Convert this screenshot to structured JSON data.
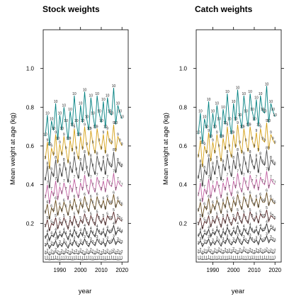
{
  "chart_data": [
    {
      "type": "line",
      "title": "Stock weights",
      "xlabel": "year",
      "ylabel": "Mean weight at age (kg)",
      "xlim": [
        1982,
        2023
      ],
      "ylim": [
        0,
        1.2
      ],
      "xticks": [
        1990,
        2000,
        2010,
        2020
      ],
      "yticks": [
        0.2,
        0.4,
        0.6,
        0.8,
        1.0
      ],
      "tick_labels_x": [
        "1990",
        "2000",
        "2010",
        "2020"
      ],
      "tick_labels_y": [
        "0.2",
        "0.4",
        "0.6",
        "0.8",
        "1.0"
      ],
      "x_start": 1983,
      "x_step": 1,
      "series": [
        {
          "name": "1",
          "color": "#555555",
          "values": [
            0.012,
            0.014,
            0.011,
            0.013,
            0.012,
            0.015,
            0.012,
            0.011,
            0.013,
            0.012,
            0.014,
            0.012,
            0.013,
            0.011,
            0.012,
            0.014,
            0.013,
            0.012,
            0.011,
            0.013,
            0.012,
            0.014,
            0.012,
            0.011,
            0.013,
            0.012,
            0.014,
            0.013,
            0.012,
            0.011,
            0.013,
            0.012,
            0.014,
            0.012,
            0.013,
            0.011,
            0.012,
            0.013
          ]
        },
        {
          "name": "2",
          "color": "#555555",
          "values": [
            0.04,
            0.05,
            0.035,
            0.045,
            0.04,
            0.055,
            0.042,
            0.036,
            0.048,
            0.04,
            0.052,
            0.044,
            0.038,
            0.05,
            0.042,
            0.047,
            0.04,
            0.053,
            0.043,
            0.037,
            0.049,
            0.041,
            0.055,
            0.045,
            0.04,
            0.05,
            0.043,
            0.038,
            0.048,
            0.042,
            0.05,
            0.04,
            0.045,
            0.052,
            0.041,
            0.047,
            0.04,
            0.044
          ]
        },
        {
          "name": "3",
          "color": "#333333",
          "values": [
            0.08,
            0.1,
            0.07,
            0.09,
            0.085,
            0.11,
            0.075,
            0.095,
            0.08,
            0.105,
            0.09,
            0.072,
            0.1,
            0.085,
            0.115,
            0.09,
            0.078,
            0.1,
            0.088,
            0.12,
            0.092,
            0.08,
            0.11,
            0.095,
            0.085,
            0.12,
            0.1,
            0.09,
            0.105,
            0.08,
            0.115,
            0.095,
            0.1,
            0.125,
            0.09,
            0.11,
            0.1,
            0.095
          ]
        },
        {
          "name": "4",
          "color": "#333333",
          "values": [
            0.12,
            0.15,
            0.11,
            0.14,
            0.13,
            0.16,
            0.12,
            0.145,
            0.13,
            0.16,
            0.14,
            0.115,
            0.15,
            0.13,
            0.17,
            0.14,
            0.125,
            0.155,
            0.135,
            0.18,
            0.14,
            0.125,
            0.165,
            0.145,
            0.13,
            0.175,
            0.15,
            0.14,
            0.16,
            0.13,
            0.17,
            0.15,
            0.155,
            0.19,
            0.14,
            0.165,
            0.16,
            0.15
          ]
        },
        {
          "name": "5",
          "color": "#5a2a2a",
          "values": [
            0.18,
            0.22,
            0.16,
            0.2,
            0.19,
            0.23,
            0.17,
            0.21,
            0.19,
            0.23,
            0.2,
            0.17,
            0.22,
            0.19,
            0.24,
            0.2,
            0.18,
            0.22,
            0.2,
            0.25,
            0.21,
            0.19,
            0.24,
            0.21,
            0.19,
            0.25,
            0.22,
            0.2,
            0.23,
            0.19,
            0.24,
            0.22,
            0.22,
            0.26,
            0.2,
            0.23,
            0.22,
            0.21
          ]
        },
        {
          "name": "6",
          "color": "#6b4e1e",
          "values": [
            0.25,
            0.3,
            0.22,
            0.28,
            0.26,
            0.32,
            0.24,
            0.29,
            0.26,
            0.31,
            0.28,
            0.24,
            0.3,
            0.27,
            0.33,
            0.28,
            0.25,
            0.31,
            0.28,
            0.34,
            0.29,
            0.26,
            0.33,
            0.3,
            0.27,
            0.34,
            0.3,
            0.28,
            0.32,
            0.27,
            0.33,
            0.3,
            0.3,
            0.35,
            0.28,
            0.32,
            0.3,
            0.29
          ]
        },
        {
          "name": "7",
          "color": "#c060a0",
          "values": [
            0.33,
            0.4,
            0.3,
            0.37,
            0.34,
            0.42,
            0.32,
            0.39,
            0.35,
            0.41,
            0.37,
            0.32,
            0.4,
            0.36,
            0.43,
            0.37,
            0.33,
            0.41,
            0.37,
            0.45,
            0.38,
            0.35,
            0.43,
            0.39,
            0.36,
            0.44,
            0.4,
            0.37,
            0.42,
            0.36,
            0.43,
            0.4,
            0.39,
            0.46,
            0.37,
            0.42,
            0.4,
            0.39
          ]
        },
        {
          "name": "8",
          "color": "#555555",
          "values": [
            0.42,
            0.5,
            0.38,
            0.47,
            0.44,
            0.53,
            0.41,
            0.49,
            0.44,
            0.52,
            0.47,
            0.41,
            0.5,
            0.46,
            0.55,
            0.47,
            0.43,
            0.52,
            0.47,
            0.56,
            0.48,
            0.44,
            0.54,
            0.49,
            0.45,
            0.55,
            0.5,
            0.47,
            0.53,
            0.45,
            0.54,
            0.5,
            0.49,
            0.57,
            0.46,
            0.52,
            0.5,
            0.49
          ]
        },
        {
          "name": "9",
          "color": "#d4a017",
          "values": [
            0.53,
            0.62,
            0.48,
            0.59,
            0.55,
            0.66,
            0.51,
            0.61,
            0.55,
            0.65,
            0.58,
            0.51,
            0.63,
            0.57,
            0.69,
            0.58,
            0.53,
            0.65,
            0.58,
            0.7,
            0.6,
            0.55,
            0.68,
            0.61,
            0.56,
            0.69,
            0.62,
            0.58,
            0.66,
            0.56,
            0.68,
            0.62,
            0.61,
            0.71,
            0.57,
            0.65,
            0.62,
            0.6
          ]
        },
        {
          "name": "10",
          "color": "#008080",
          "values": [
            0.65,
            0.76,
            0.6,
            0.73,
            0.68,
            0.82,
            0.63,
            0.76,
            0.68,
            0.8,
            0.72,
            0.63,
            0.78,
            0.7,
            0.86,
            0.72,
            0.65,
            0.81,
            0.72,
            0.88,
            0.74,
            0.68,
            0.85,
            0.76,
            0.69,
            0.86,
            0.77,
            0.72,
            0.83,
            0.69,
            0.85,
            0.77,
            0.76,
            0.9,
            0.71,
            0.81,
            0.77,
            0.74
          ]
        }
      ]
    },
    {
      "type": "line",
      "title": "Catch weights",
      "xlabel": "year",
      "ylabel": "Mean weight at age (kg)",
      "xlim": [
        1982,
        2023
      ],
      "ylim": [
        0,
        1.2
      ],
      "xticks": [
        1990,
        2000,
        2010,
        2020
      ],
      "yticks": [
        0.2,
        0.4,
        0.6,
        0.8,
        1.0
      ],
      "tick_labels_x": [
        "1990",
        "2000",
        "2010",
        "2020"
      ],
      "tick_labels_y": [
        "0.2",
        "0.4",
        "0.6",
        "0.8",
        "1.0"
      ],
      "x_start": 1983,
      "x_step": 1,
      "series": [
        {
          "name": "1",
          "color": "#555555",
          "values": [
            0.013,
            0.015,
            0.012,
            0.014,
            0.013,
            0.016,
            0.013,
            0.012,
            0.014,
            0.013,
            0.015,
            0.013,
            0.014,
            0.012,
            0.013,
            0.015,
            0.014,
            0.013,
            0.012,
            0.014,
            0.013,
            0.015,
            0.013,
            0.012,
            0.014,
            0.013,
            0.015,
            0.014,
            0.013,
            0.012,
            0.014,
            0.013,
            0.015,
            0.013,
            0.014,
            0.012,
            0.013,
            0.014
          ]
        },
        {
          "name": "2",
          "color": "#555555",
          "values": [
            0.045,
            0.055,
            0.04,
            0.05,
            0.045,
            0.06,
            0.047,
            0.041,
            0.053,
            0.045,
            0.057,
            0.049,
            0.043,
            0.055,
            0.047,
            0.052,
            0.045,
            0.058,
            0.048,
            0.042,
            0.054,
            0.046,
            0.06,
            0.05,
            0.045,
            0.055,
            0.048,
            0.043,
            0.053,
            0.047,
            0.055,
            0.045,
            0.05,
            0.057,
            0.046,
            0.052,
            0.045,
            0.049
          ]
        },
        {
          "name": "3",
          "color": "#333333",
          "values": [
            0.09,
            0.11,
            0.08,
            0.1,
            0.095,
            0.12,
            0.085,
            0.105,
            0.09,
            0.115,
            0.1,
            0.082,
            0.11,
            0.095,
            0.125,
            0.1,
            0.088,
            0.11,
            0.098,
            0.13,
            0.102,
            0.09,
            0.12,
            0.105,
            0.095,
            0.13,
            0.11,
            0.1,
            0.115,
            0.09,
            0.125,
            0.105,
            0.11,
            0.135,
            0.1,
            0.12,
            0.11,
            0.105
          ]
        },
        {
          "name": "4",
          "color": "#333333",
          "values": [
            0.13,
            0.16,
            0.12,
            0.15,
            0.14,
            0.17,
            0.13,
            0.155,
            0.14,
            0.17,
            0.15,
            0.125,
            0.16,
            0.14,
            0.18,
            0.15,
            0.135,
            0.165,
            0.145,
            0.19,
            0.15,
            0.135,
            0.175,
            0.155,
            0.14,
            0.185,
            0.16,
            0.15,
            0.17,
            0.14,
            0.18,
            0.16,
            0.165,
            0.2,
            0.15,
            0.175,
            0.17,
            0.16
          ]
        },
        {
          "name": "5",
          "color": "#5a2a2a",
          "values": [
            0.19,
            0.23,
            0.17,
            0.21,
            0.2,
            0.24,
            0.18,
            0.22,
            0.2,
            0.24,
            0.21,
            0.18,
            0.23,
            0.2,
            0.25,
            0.21,
            0.19,
            0.23,
            0.21,
            0.26,
            0.22,
            0.2,
            0.25,
            0.22,
            0.2,
            0.26,
            0.23,
            0.21,
            0.24,
            0.2,
            0.25,
            0.23,
            0.23,
            0.27,
            0.21,
            0.24,
            0.23,
            0.22
          ]
        },
        {
          "name": "6",
          "color": "#6b4e1e",
          "values": [
            0.26,
            0.31,
            0.23,
            0.29,
            0.27,
            0.33,
            0.25,
            0.3,
            0.27,
            0.32,
            0.29,
            0.25,
            0.31,
            0.28,
            0.34,
            0.29,
            0.26,
            0.32,
            0.29,
            0.35,
            0.3,
            0.27,
            0.34,
            0.31,
            0.28,
            0.35,
            0.31,
            0.29,
            0.33,
            0.28,
            0.34,
            0.31,
            0.31,
            0.36,
            0.29,
            0.33,
            0.31,
            0.3
          ]
        },
        {
          "name": "7",
          "color": "#c060a0",
          "values": [
            0.34,
            0.41,
            0.31,
            0.38,
            0.35,
            0.43,
            0.33,
            0.4,
            0.36,
            0.42,
            0.38,
            0.33,
            0.41,
            0.37,
            0.44,
            0.38,
            0.34,
            0.42,
            0.38,
            0.46,
            0.39,
            0.36,
            0.44,
            0.4,
            0.37,
            0.45,
            0.41,
            0.38,
            0.43,
            0.37,
            0.44,
            0.41,
            0.4,
            0.47,
            0.38,
            0.43,
            0.41,
            0.4
          ]
        },
        {
          "name": "8",
          "color": "#555555",
          "values": [
            0.43,
            0.51,
            0.39,
            0.48,
            0.45,
            0.54,
            0.42,
            0.5,
            0.45,
            0.53,
            0.48,
            0.42,
            0.51,
            0.47,
            0.56,
            0.48,
            0.44,
            0.53,
            0.48,
            0.57,
            0.49,
            0.45,
            0.55,
            0.5,
            0.46,
            0.56,
            0.51,
            0.48,
            0.54,
            0.46,
            0.55,
            0.51,
            0.5,
            0.58,
            0.47,
            0.53,
            0.51,
            0.5
          ]
        },
        {
          "name": "9",
          "color": "#d4a017",
          "values": [
            0.54,
            0.63,
            0.49,
            0.6,
            0.56,
            0.67,
            0.52,
            0.62,
            0.56,
            0.66,
            0.59,
            0.52,
            0.64,
            0.58,
            0.7,
            0.59,
            0.54,
            0.66,
            0.59,
            0.71,
            0.61,
            0.56,
            0.69,
            0.62,
            0.57,
            0.7,
            0.63,
            0.59,
            0.67,
            0.57,
            0.69,
            0.63,
            0.62,
            0.72,
            0.58,
            0.66,
            0.63,
            0.61
          ]
        },
        {
          "name": "10",
          "color": "#008080",
          "values": [
            0.66,
            0.77,
            0.61,
            0.74,
            0.69,
            0.83,
            0.64,
            0.77,
            0.69,
            0.81,
            0.73,
            0.64,
            0.79,
            0.71,
            0.87,
            0.73,
            0.66,
            0.82,
            0.73,
            0.89,
            0.75,
            0.69,
            0.86,
            0.77,
            0.7,
            0.87,
            0.78,
            0.73,
            0.84,
            0.7,
            0.86,
            0.78,
            0.77,
            0.91,
            0.72,
            0.82,
            0.78,
            0.75
          ]
        }
      ]
    }
  ]
}
